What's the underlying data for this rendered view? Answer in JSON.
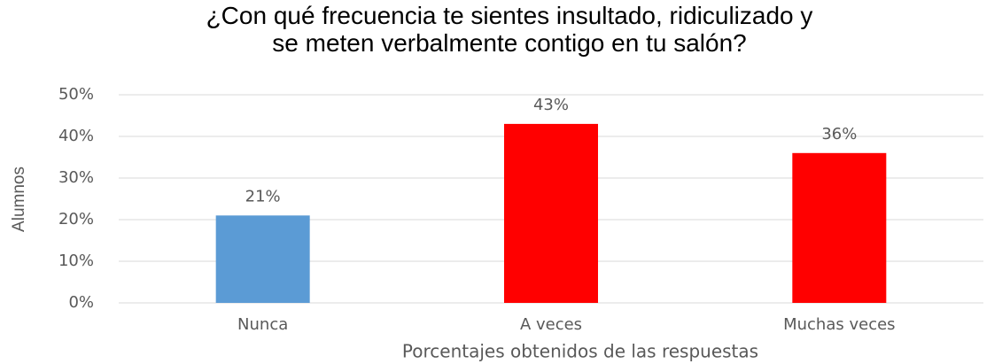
{
  "chart_data": {
    "type": "bar",
    "title": "¿Con qué frecuencia te sientes insultado, ridiculizado y se meten verbalmente contigo en tu salón?",
    "x_label": "Porcentajes obtenidos de las respuestas",
    "y_label": "Alumnos",
    "categories": [
      "Nunca",
      "A veces",
      "Muchas veces"
    ],
    "values": [
      21,
      43,
      36
    ],
    "value_labels": [
      "21%",
      "43%",
      "36%"
    ],
    "colors": [
      "#5b9bd5",
      "#ff0000",
      "#ff0000"
    ],
    "ylim": [
      0,
      50
    ],
    "yticks": [
      {
        "value": 0,
        "label": "0%"
      },
      {
        "value": 10,
        "label": "10%"
      },
      {
        "value": 20,
        "label": "20%"
      },
      {
        "value": 30,
        "label": "30%"
      },
      {
        "value": 40,
        "label": "40%"
      },
      {
        "value": 50,
        "label": "50%"
      }
    ],
    "grid": true
  }
}
